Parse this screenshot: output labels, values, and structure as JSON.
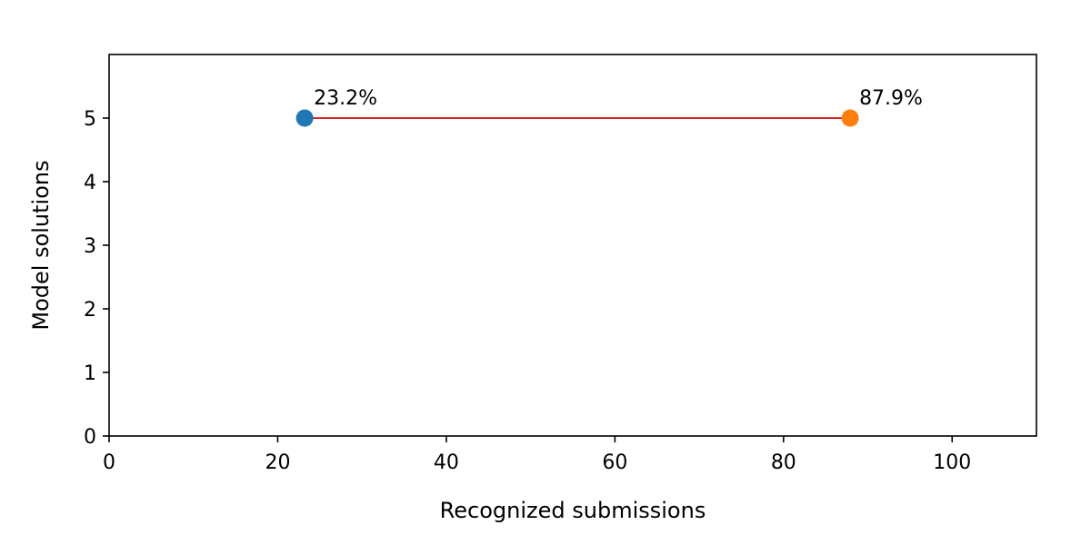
{
  "chart_data": {
    "type": "scatter",
    "title": "",
    "xlabel": "Recognized submissions",
    "ylabel": "Model solutions",
    "xlim": [
      0,
      110
    ],
    "ylim": [
      0,
      6
    ],
    "xticks": [
      0,
      20,
      40,
      60,
      80,
      100
    ],
    "yticks": [
      0,
      1,
      2,
      3,
      4,
      5
    ],
    "grid": false,
    "points": [
      {
        "x": 23.2,
        "y": 5,
        "label": "23.2%",
        "color": "#1f77b4"
      },
      {
        "x": 87.9,
        "y": 5,
        "label": "87.9%",
        "color": "#ff7f0e"
      }
    ],
    "connector_color": "#d62728"
  }
}
